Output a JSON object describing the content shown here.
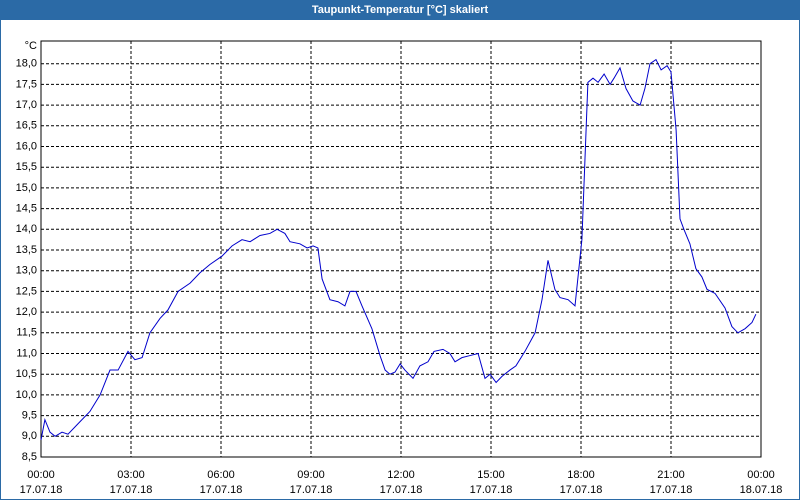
{
  "chart_data": {
    "type": "line",
    "title": "Taupunkt-Temperatur [°C] skaliert",
    "y_unit": "°C",
    "color": "#0000cc",
    "grid": true,
    "xlim": [
      0,
      24
    ],
    "ylim": [
      8.5,
      18.5
    ],
    "xticks": [
      {
        "value": 0,
        "label": "00:00",
        "date": "17.07.18"
      },
      {
        "value": 3,
        "label": "03:00",
        "date": "17.07.18"
      },
      {
        "value": 6,
        "label": "06:00",
        "date": "17.07.18"
      },
      {
        "value": 9,
        "label": "09:00",
        "date": "17.07.18"
      },
      {
        "value": 12,
        "label": "12:00",
        "date": "17.07.18"
      },
      {
        "value": 15,
        "label": "15:00",
        "date": "17.07.18"
      },
      {
        "value": 18,
        "label": "18:00",
        "date": "17.07.18"
      },
      {
        "value": 21,
        "label": "21:00",
        "date": "17.07.18"
      },
      {
        "value": 24,
        "label": "00:00",
        "date": "18.07.18"
      }
    ],
    "yticks": [
      {
        "value": 8.5,
        "label": "8,5"
      },
      {
        "value": 9,
        "label": "9,0"
      },
      {
        "value": 9.5,
        "label": "9,5"
      },
      {
        "value": 10,
        "label": "10,0"
      },
      {
        "value": 10.5,
        "label": "10,5"
      },
      {
        "value": 11,
        "label": "11,0"
      },
      {
        "value": 11.5,
        "label": "11,5"
      },
      {
        "value": 12,
        "label": "12,0"
      },
      {
        "value": 12.5,
        "label": "12,5"
      },
      {
        "value": 13,
        "label": "13,0"
      },
      {
        "value": 13.5,
        "label": "13,5"
      },
      {
        "value": 14,
        "label": "14,0"
      },
      {
        "value": 14.5,
        "label": "14,5"
      },
      {
        "value": 15,
        "label": "15,0"
      },
      {
        "value": 15.5,
        "label": "15,5"
      },
      {
        "value": 16,
        "label": "16,0"
      },
      {
        "value": 16.5,
        "label": "16,5"
      },
      {
        "value": 17,
        "label": "17,0"
      },
      {
        "value": 17.5,
        "label": "17,5"
      },
      {
        "value": 18,
        "label": "18,0"
      }
    ],
    "x": [
      0,
      0.13,
      0.3,
      0.47,
      0.7,
      0.9,
      1.23,
      1.63,
      1.97,
      2.3,
      2.57,
      2.9,
      3.13,
      3.37,
      3.63,
      3.97,
      4.23,
      4.57,
      4.97,
      5.3,
      5.63,
      6.03,
      6.37,
      6.7,
      6.97,
      7.3,
      7.63,
      7.87,
      8.13,
      8.3,
      8.63,
      8.87,
      9.07,
      9.23,
      9.37,
      9.63,
      9.9,
      10.13,
      10.3,
      10.5,
      10.7,
      11.03,
      11.3,
      11.47,
      11.63,
      11.8,
      11.97,
      12.13,
      12.4,
      12.63,
      12.9,
      13.1,
      13.4,
      13.63,
      13.8,
      14.03,
      14.3,
      14.57,
      14.8,
      14.97,
      15.17,
      15.37,
      15.63,
      15.83,
      16.13,
      16.47,
      16.7,
      16.9,
      17.13,
      17.3,
      17.57,
      17.8,
      18.03,
      18.23,
      18.4,
      18.57,
      18.77,
      18.97,
      19.1,
      19.3,
      19.5,
      19.73,
      19.97,
      20.13,
      20.3,
      20.5,
      20.67,
      20.87,
      21.0,
      21.17,
      21.3,
      21.43,
      21.63,
      21.83,
      22.03,
      22.2,
      22.47,
      22.8,
      23.03,
      23.23,
      23.47,
      23.7,
      23.83
    ],
    "values": [
      8.91,
      9.4,
      9.1,
      9.0,
      9.1,
      9.05,
      9.3,
      9.6,
      10.0,
      10.6,
      10.6,
      11.05,
      10.85,
      10.9,
      11.5,
      11.85,
      12.05,
      12.5,
      12.7,
      12.95,
      13.15,
      13.35,
      13.6,
      13.75,
      13.7,
      13.85,
      13.9,
      14.0,
      13.9,
      13.7,
      13.65,
      13.55,
      13.6,
      13.55,
      12.8,
      12.3,
      12.25,
      12.15,
      12.5,
      12.5,
      12.15,
      11.6,
      10.95,
      10.6,
      10.5,
      10.55,
      10.75,
      10.6,
      10.4,
      10.7,
      10.8,
      11.05,
      11.1,
      11.0,
      10.8,
      10.9,
      10.95,
      11.0,
      10.4,
      10.5,
      10.3,
      10.45,
      10.6,
      10.7,
      11.05,
      11.5,
      12.3,
      13.25,
      12.55,
      12.35,
      12.3,
      12.15,
      13.75,
      17.55,
      17.65,
      17.55,
      17.75,
      17.5,
      17.65,
      17.9,
      17.4,
      17.1,
      17.0,
      17.4,
      18.0,
      18.1,
      17.85,
      17.95,
      17.8,
      16.4,
      14.25,
      14.0,
      13.65,
      13.05,
      12.85,
      12.55,
      12.45,
      12.1,
      11.65,
      11.5,
      11.6,
      11.75,
      11.95
    ]
  }
}
